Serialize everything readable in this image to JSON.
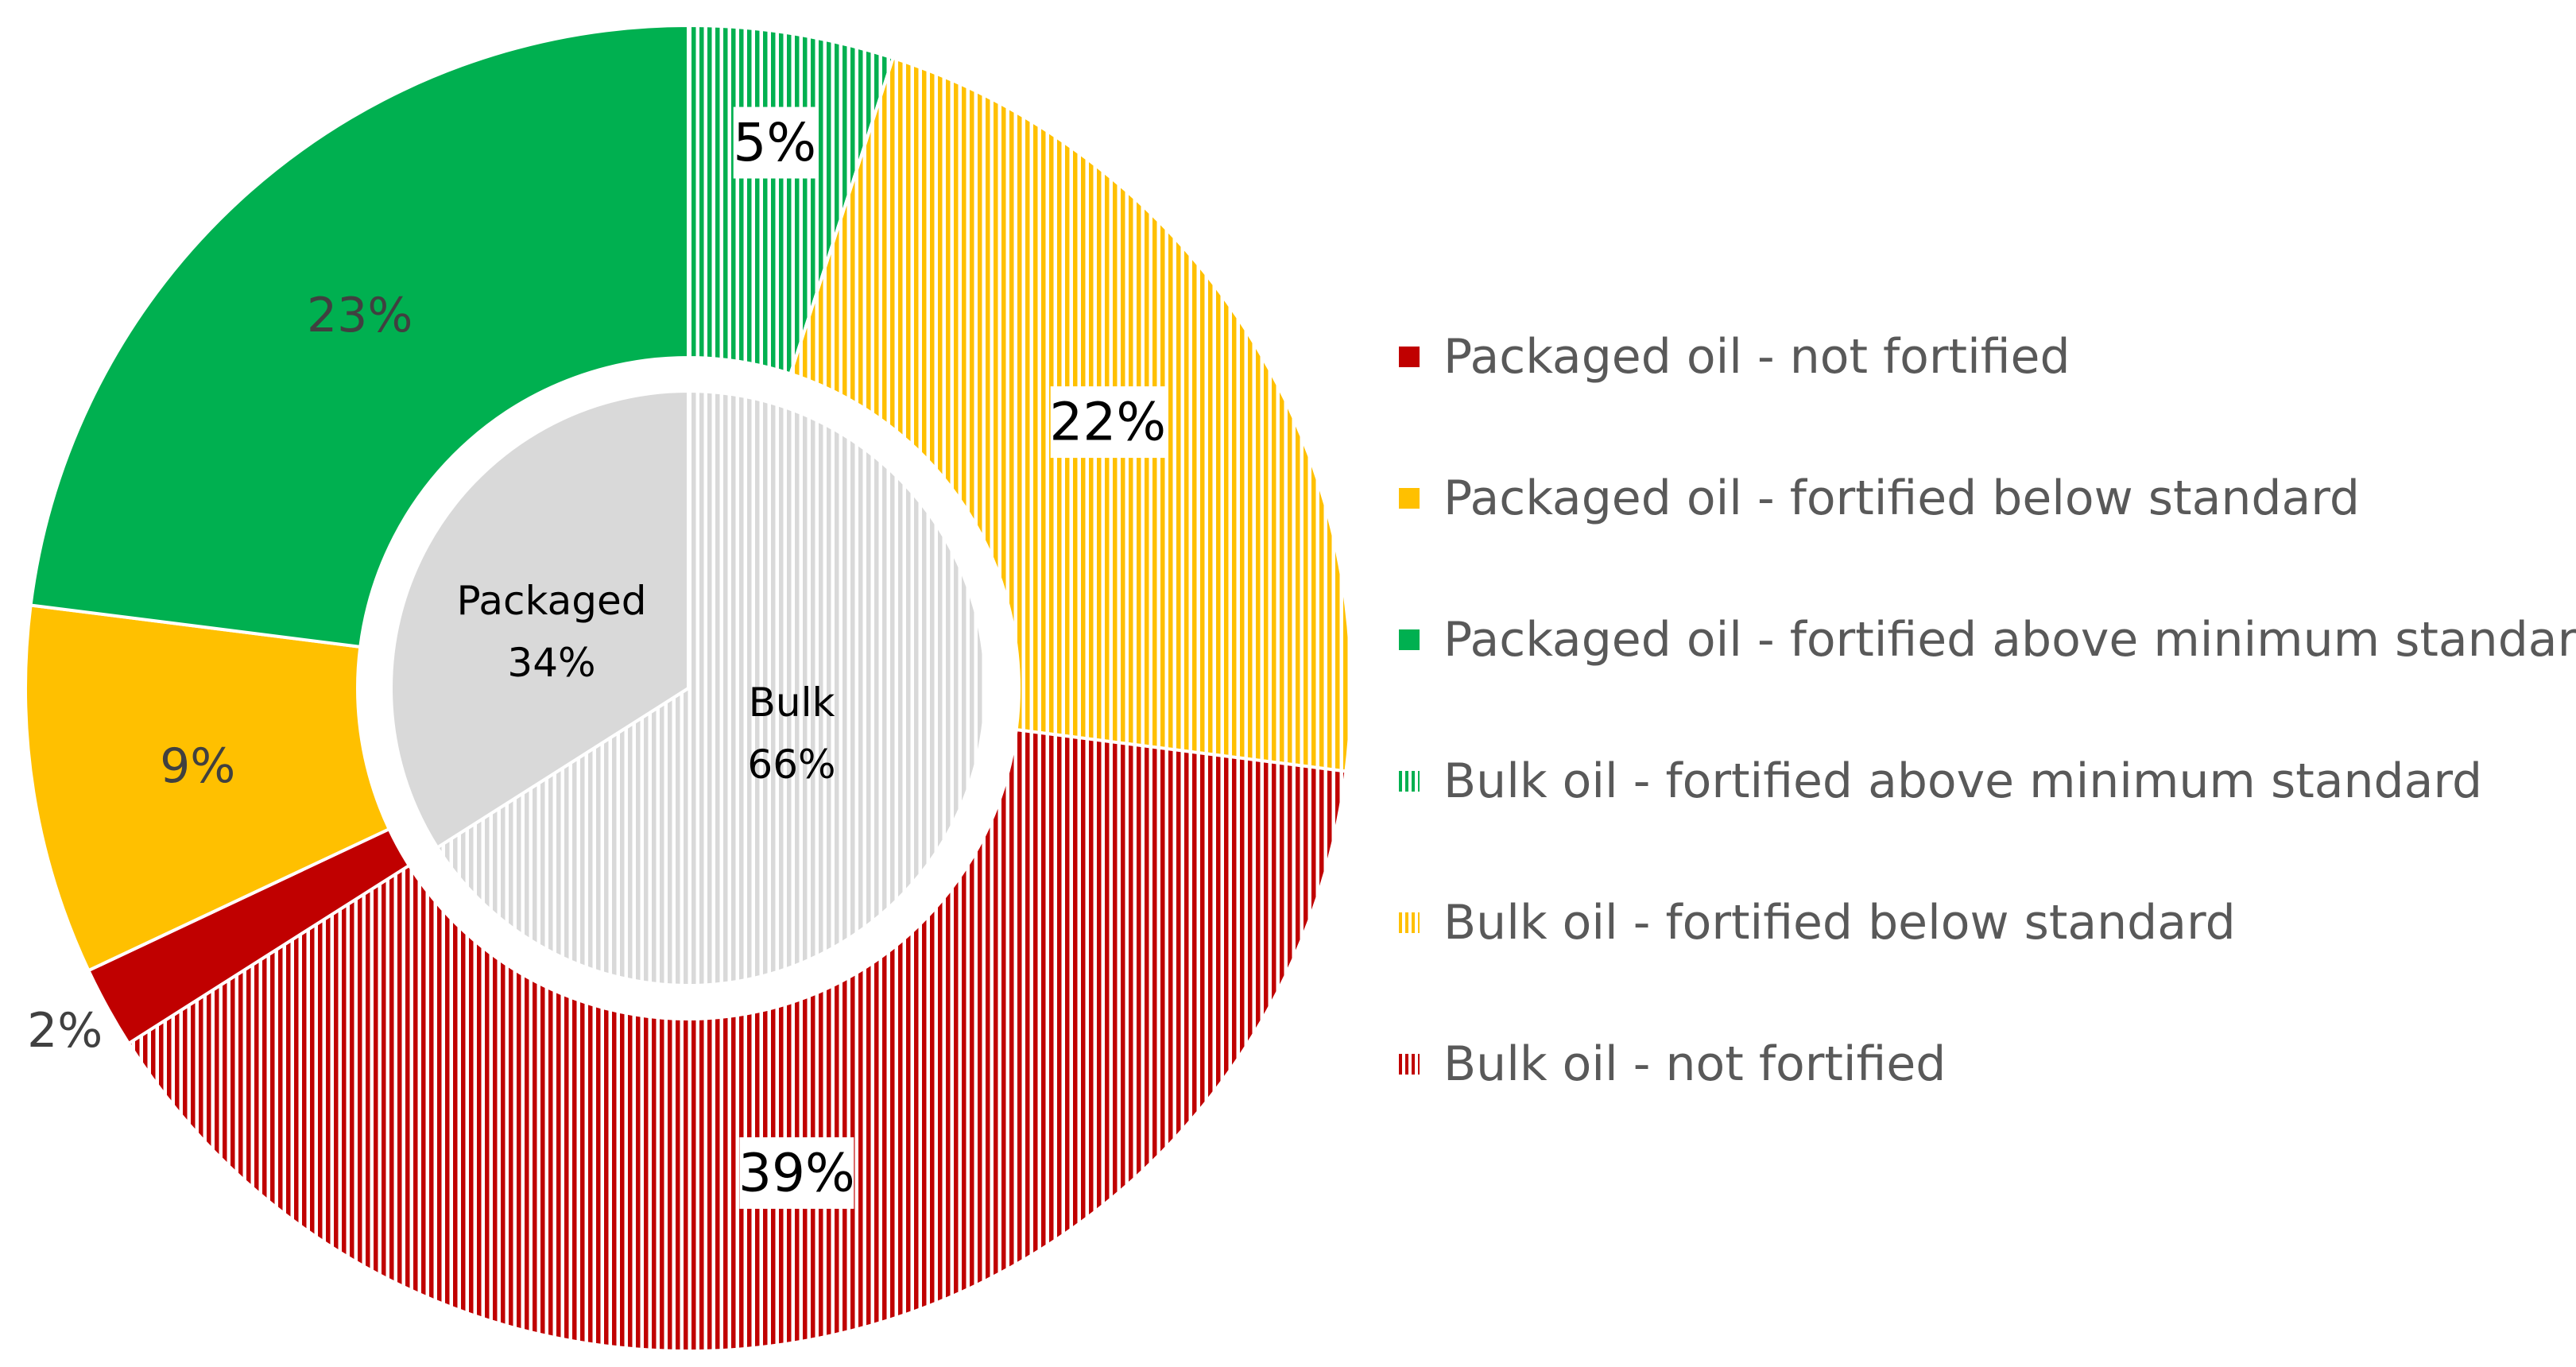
{
  "chart_data": {
    "type": "pie",
    "subtype": "nested-donut",
    "inner_ring": {
      "slices": [
        {
          "label": "Packaged",
          "value": 34,
          "display": "34%",
          "color": "#d9d9d9",
          "pattern": "solid"
        },
        {
          "label": "Bulk",
          "value": 66,
          "display": "66%",
          "color": "#d9d9d9",
          "pattern": "vertical-stripes"
        }
      ]
    },
    "outer_ring": {
      "slices": [
        {
          "name": "Bulk oil - fortified above minimum standard",
          "value": 5,
          "display": "5%",
          "color": "#00b050",
          "pattern": "vertical-stripes",
          "label_box": true
        },
        {
          "name": "Bulk oil - fortified below standard",
          "value": 22,
          "display": "22%",
          "color": "#ffc000",
          "pattern": "vertical-stripes",
          "label_box": true
        },
        {
          "name": "Bulk oil - not fortified",
          "value": 39,
          "display": "39%",
          "color": "#c00000",
          "pattern": "vertical-stripes",
          "label_box": true
        },
        {
          "name": "Packaged oil - not fortified",
          "value": 2,
          "display": "2%",
          "color": "#c00000",
          "pattern": "solid",
          "label_box": false
        },
        {
          "name": "Packaged oil - fortified  below standard",
          "value": 9,
          "display": "9%",
          "color": "#ffc000",
          "pattern": "solid",
          "label_box": false
        },
        {
          "name": "Packaged oil - fortified above minimum standard",
          "value": 23,
          "display": "23%",
          "color": "#00b050",
          "pattern": "solid",
          "label_box": false
        }
      ]
    },
    "legend": {
      "position": "right",
      "entries": [
        {
          "label": "Packaged oil - not fortified",
          "color": "#c00000",
          "pattern": "solid"
        },
        {
          "label": "Packaged oil - fortified  below standard",
          "color": "#ffc000",
          "pattern": "solid"
        },
        {
          "label": "Packaged oil - fortified above minimum standard",
          "color": "#00b050",
          "pattern": "solid"
        },
        {
          "label": "Bulk oil - fortified above minimum standard",
          "color": "#00b050",
          "pattern": "vertical-stripes"
        },
        {
          "label": "Bulk oil - fortified below standard",
          "color": "#ffc000",
          "pattern": "vertical-stripes"
        },
        {
          "label": "Bulk oil - not fortified",
          "color": "#c00000",
          "pattern": "vertical-stripes"
        }
      ]
    }
  }
}
